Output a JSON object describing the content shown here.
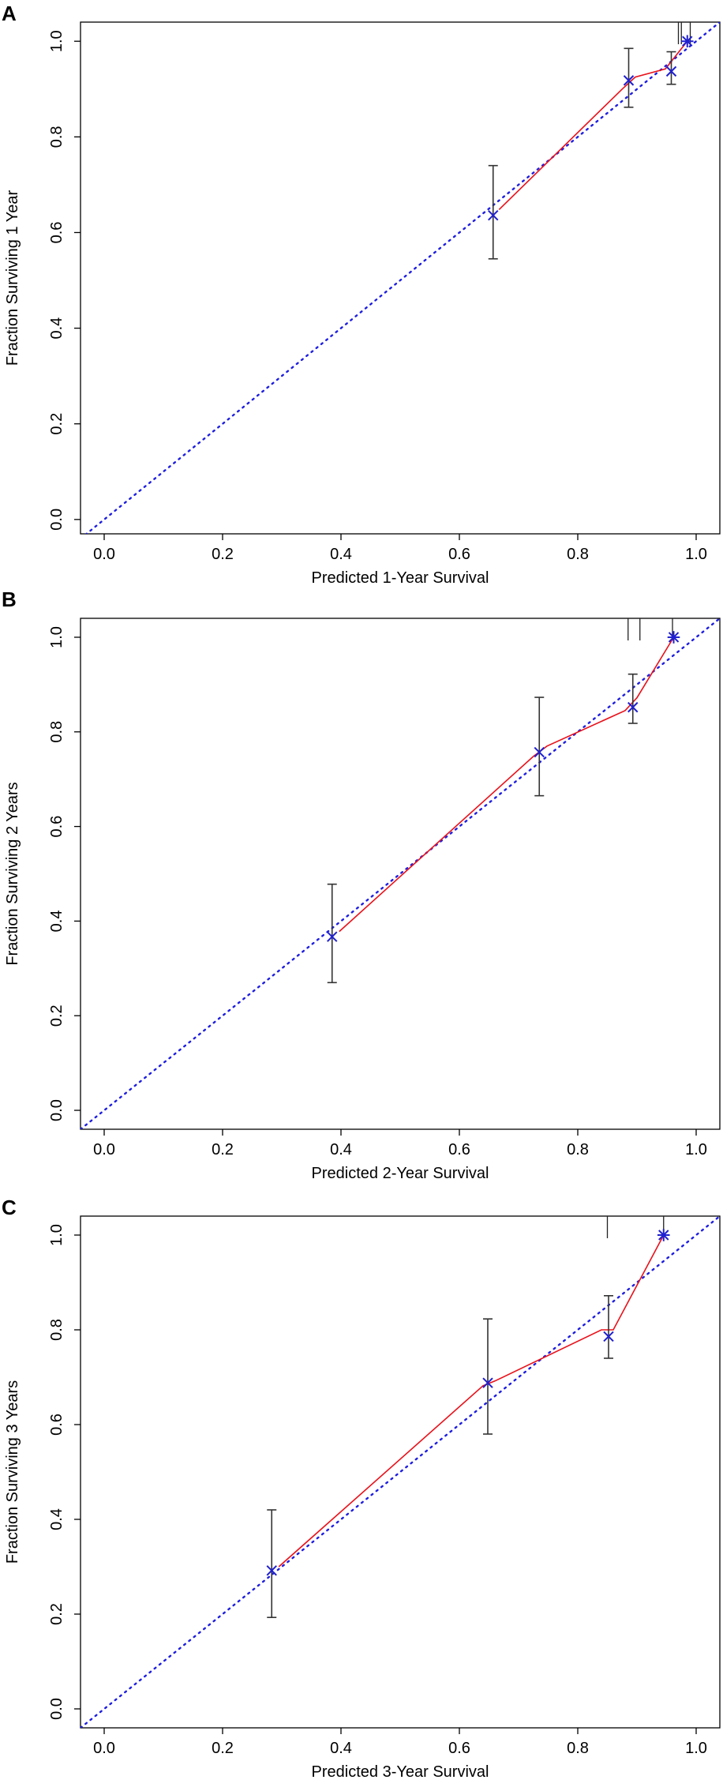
{
  "chart_data": [
    {
      "type": "scatter",
      "panel_label": "A",
      "title": "",
      "xlabel": "Predicted 1-Year Survival",
      "ylabel": "Fraction Surviving  1 Year",
      "xlim": [
        -0.04,
        1.04
      ],
      "ylim": [
        -0.03,
        1.04
      ],
      "xticks": [
        0.0,
        0.2,
        0.4,
        0.6,
        0.8,
        1.0
      ],
      "xtick_labels": [
        "0.0",
        "0.2",
        "0.4",
        "0.6",
        "0.8",
        "1.0"
      ],
      "yticks": [
        0.0,
        0.2,
        0.4,
        0.6,
        0.8,
        1.0
      ],
      "ytick_labels": [
        "0.0",
        "0.2",
        "0.4",
        "0.6",
        "0.8",
        "1.0"
      ],
      "reference_line": "ideal (y = x), blue dotted",
      "points": [
        {
          "x": 0.657,
          "y": 0.636,
          "lower": 0.545,
          "upper": 0.74,
          "marker": "x"
        },
        {
          "x": 0.886,
          "y": 0.918,
          "lower": 0.862,
          "upper": 0.985,
          "marker": "x"
        },
        {
          "x": 0.958,
          "y": 0.937,
          "lower": 0.91,
          "upper": 0.978,
          "marker": "x"
        },
        {
          "x": 0.985,
          "y": 1.0,
          "lower": null,
          "upper": null,
          "marker": "*"
        }
      ],
      "calibration_line": [
        [
          0.667,
          0.648
        ],
        [
          0.875,
          0.9
        ],
        [
          0.897,
          0.925
        ],
        [
          0.948,
          0.942
        ],
        [
          0.985,
          1.0
        ]
      ],
      "rug": [
        0.97,
        0.975,
        0.99
      ]
    },
    {
      "type": "scatter",
      "panel_label": "B",
      "title": "",
      "xlabel": "Predicted 2-Year Survival",
      "ylabel": "Fraction Surviving  2 Years",
      "xlim": [
        -0.04,
        1.04
      ],
      "ylim": [
        -0.04,
        1.04
      ],
      "xticks": [
        0.0,
        0.2,
        0.4,
        0.6,
        0.8,
        1.0
      ],
      "xtick_labels": [
        "0.0",
        "0.2",
        "0.4",
        "0.6",
        "0.8",
        "1.0"
      ],
      "yticks": [
        0.0,
        0.2,
        0.4,
        0.6,
        0.8,
        1.0
      ],
      "ytick_labels": [
        "0.0",
        "0.2",
        "0.4",
        "0.6",
        "0.8",
        "1.0"
      ],
      "reference_line": "ideal (y = x), blue dotted",
      "points": [
        {
          "x": 0.385,
          "y": 0.367,
          "lower": 0.27,
          "upper": 0.478,
          "marker": "x"
        },
        {
          "x": 0.735,
          "y": 0.757,
          "lower": 0.665,
          "upper": 0.873,
          "marker": "x"
        },
        {
          "x": 0.893,
          "y": 0.852,
          "lower": 0.818,
          "upper": 0.922,
          "marker": "x"
        },
        {
          "x": 0.962,
          "y": 1.0,
          "lower": null,
          "upper": null,
          "marker": "*"
        }
      ],
      "calibration_line": [
        [
          0.397,
          0.378
        ],
        [
          0.725,
          0.748
        ],
        [
          0.748,
          0.77
        ],
        [
          0.88,
          0.845
        ],
        [
          0.9,
          0.872
        ],
        [
          0.962,
          1.0
        ]
      ],
      "rug": [
        0.885,
        0.905,
        0.96
      ]
    },
    {
      "type": "scatter",
      "panel_label": "C",
      "title": "",
      "xlabel": "Predicted 3-Year Survival",
      "ylabel": "Fraction Surviving  3 Years",
      "xlim": [
        -0.04,
        1.04
      ],
      "ylim": [
        -0.04,
        1.04
      ],
      "xticks": [
        0.0,
        0.2,
        0.4,
        0.6,
        0.8,
        1.0
      ],
      "xtick_labels": [
        "0.0",
        "0.2",
        "0.4",
        "0.6",
        "0.8",
        "1.0"
      ],
      "yticks": [
        0.0,
        0.2,
        0.4,
        0.6,
        0.8,
        1.0
      ],
      "ytick_labels": [
        "0.0",
        "0.2",
        "0.4",
        "0.6",
        "0.8",
        "1.0"
      ],
      "reference_line": "ideal (y = x), blue dotted",
      "points": [
        {
          "x": 0.283,
          "y": 0.292,
          "lower": 0.193,
          "upper": 0.42,
          "marker": "x"
        },
        {
          "x": 0.648,
          "y": 0.688,
          "lower": 0.58,
          "upper": 0.823,
          "marker": "x"
        },
        {
          "x": 0.852,
          "y": 0.786,
          "lower": 0.74,
          "upper": 0.872,
          "marker": "x"
        },
        {
          "x": 0.945,
          "y": 1.0,
          "lower": null,
          "upper": null,
          "marker": "*"
        }
      ],
      "calibration_line": [
        [
          0.295,
          0.3
        ],
        [
          0.64,
          0.682
        ],
        [
          0.66,
          0.692
        ],
        [
          0.84,
          0.8
        ],
        [
          0.86,
          0.8
        ],
        [
          0.945,
          1.0
        ]
      ],
      "rug": [
        0.85,
        0.945
      ]
    }
  ],
  "colors": {
    "reference": "#1f1fe0",
    "calibration": "#e8111a",
    "marker": "#2020d0",
    "errorbar": "#333333",
    "axis": "#000000"
  }
}
